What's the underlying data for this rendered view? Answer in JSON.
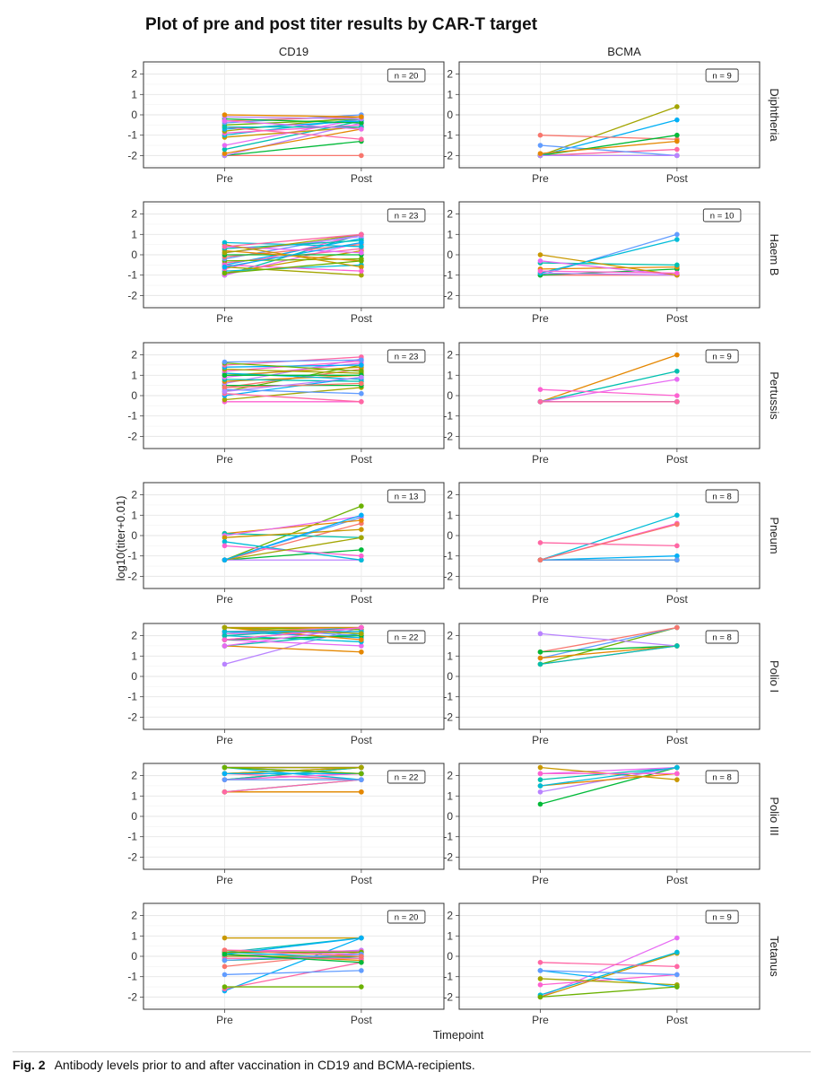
{
  "chart_data": {
    "type": "line",
    "title": "Plot of pre and post titer results by CAR-T target",
    "xlabel": "Timepoint",
    "ylabel": "log10(titer+0.01)",
    "x_categories": [
      "Pre",
      "Post"
    ],
    "ylim": [
      -2.6,
      2.6
    ],
    "y_ticks": [
      -2,
      -1,
      0,
      1,
      2
    ],
    "grid": true,
    "columns": [
      "CD19",
      "BCMA"
    ],
    "rows": [
      "Diphtheria",
      "Haem B",
      "Pertussis",
      "Pneum",
      "Polio I",
      "Polio III",
      "Tetanus"
    ],
    "palette": [
      "#F8766D",
      "#E58700",
      "#C99800",
      "#A3A500",
      "#6BB100",
      "#00BA38",
      "#00C0AF",
      "#00BCD8",
      "#00B0F6",
      "#619CFF",
      "#B983FF",
      "#E76BF3",
      "#FD61D1",
      "#FF67A4"
    ],
    "panels": [
      {
        "target": "CD19",
        "antigen": "Diphtheria",
        "n_label": "n = 20",
        "pairs": [
          [
            -2,
            -2
          ],
          [
            -2,
            -1.3
          ],
          [
            -2,
            -0.4
          ],
          [
            -1.9,
            -0.7
          ],
          [
            -1.7,
            -0.3
          ],
          [
            -1.5,
            -0.2
          ],
          [
            -1.1,
            -0.6
          ],
          [
            -1.0,
            -0.2
          ],
          [
            -0.9,
            -0.5
          ],
          [
            -0.8,
            -0.1
          ],
          [
            -0.7,
            -0.3
          ],
          [
            -0.6,
            -1.2
          ],
          [
            -0.5,
            -0.2
          ],
          [
            -0.4,
            0
          ],
          [
            -0.3,
            -0.1
          ],
          [
            -0.2,
            -0.4
          ],
          [
            -0.1,
            -0.2
          ],
          [
            0,
            -0.1
          ],
          [
            -0.6,
            -0.6
          ],
          [
            -0.3,
            -0.7
          ]
        ]
      },
      {
        "target": "BCMA",
        "antigen": "Diphtheria",
        "n_label": "n = 9",
        "pairs": [
          [
            -2,
            0.4
          ],
          [
            -2,
            -0.25
          ],
          [
            -2,
            -1.7
          ],
          [
            -2,
            -2
          ],
          [
            -1.5,
            -2
          ],
          [
            -1.0,
            -1.2
          ],
          [
            -2,
            -1.0
          ],
          [
            -2,
            -2
          ],
          [
            -1.9,
            -1.3
          ]
        ]
      },
      {
        "target": "CD19",
        "antigen": "Haem B",
        "n_label": "n = 23",
        "pairs": [
          [
            -1,
            1
          ],
          [
            -1,
            0.6
          ],
          [
            -0.9,
            0.2
          ],
          [
            -0.8,
            -0.5
          ],
          [
            -0.7,
            1
          ],
          [
            -0.6,
            -1
          ],
          [
            -0.5,
            0.8
          ],
          [
            -0.4,
            0.3
          ],
          [
            -0.3,
            -0.2
          ],
          [
            -0.2,
            1
          ],
          [
            -0.1,
            0.5
          ],
          [
            0,
            0
          ],
          [
            0.1,
            0.9
          ],
          [
            0.2,
            -0.3
          ],
          [
            0.3,
            0.7
          ],
          [
            0.4,
            0.1
          ],
          [
            0.5,
            -0.6
          ],
          [
            0.6,
            0.4
          ],
          [
            -0.5,
            -0.8
          ],
          [
            0.1,
            1
          ],
          [
            -0.6,
            0.6
          ],
          [
            0.4,
            1
          ],
          [
            -0.9,
            -0.3
          ]
        ]
      },
      {
        "target": "BCMA",
        "antigen": "Haem B",
        "n_label": "n = 10",
        "pairs": [
          [
            -1,
            1
          ],
          [
            -1,
            -1
          ],
          [
            -1,
            -0.7
          ],
          [
            -0.9,
            -1
          ],
          [
            -0.7,
            -0.6
          ],
          [
            -0.4,
            -0.5
          ],
          [
            -0.3,
            -1
          ],
          [
            0,
            -1
          ],
          [
            -0.9,
            0.75
          ],
          [
            -0.8,
            -0.9
          ]
        ]
      },
      {
        "target": "CD19",
        "antigen": "Pertussis",
        "n_label": "n = 23",
        "pairs": [
          [
            -0.3,
            -0.3
          ],
          [
            -0.2,
            0.4
          ],
          [
            0,
            0.9
          ],
          [
            0.1,
            -0.3
          ],
          [
            0.2,
            1.5
          ],
          [
            0.3,
            0.1
          ],
          [
            0.4,
            1.3
          ],
          [
            0.5,
            0.5
          ],
          [
            0.6,
            1.8
          ],
          [
            0.7,
            1.0
          ],
          [
            0.8,
            0.7
          ],
          [
            0.9,
            1.6
          ],
          [
            1.0,
            1.4
          ],
          [
            1.1,
            0.8
          ],
          [
            1.2,
            1.7
          ],
          [
            1.3,
            1.1
          ],
          [
            1.4,
            1.5
          ],
          [
            1.5,
            1.9
          ],
          [
            1.6,
            1.2
          ],
          [
            1.65,
            1.75
          ],
          [
            0.4,
            0.6
          ],
          [
            1.0,
            1.0
          ],
          [
            0.2,
            0.9
          ]
        ]
      },
      {
        "target": "BCMA",
        "antigen": "Pertussis",
        "n_label": "n = 9",
        "pairs": [
          [
            -0.3,
            2
          ],
          [
            -0.3,
            1.2
          ],
          [
            -0.3,
            0.8
          ],
          [
            -0.3,
            -0.3
          ],
          [
            -0.3,
            -0.3
          ],
          [
            0.3,
            0
          ],
          [
            -0.3,
            -0.3
          ],
          [
            -0.3,
            -0.3
          ],
          [
            -0.3,
            -0.3
          ]
        ]
      },
      {
        "target": "CD19",
        "antigen": "Pneum",
        "n_label": "n = 13",
        "pairs": [
          [
            -1.2,
            1.45
          ],
          [
            -1.2,
            0.9
          ],
          [
            -1.2,
            0.6
          ],
          [
            -1.2,
            -0.7
          ],
          [
            -1.2,
            -1.2
          ],
          [
            0.1,
            0.75
          ],
          [
            0.1,
            -0.1
          ],
          [
            0,
            0.95
          ],
          [
            -0.1,
            0.3
          ],
          [
            -0.3,
            -1.2
          ],
          [
            -0.5,
            -1.0
          ],
          [
            -1.2,
            -0.1
          ],
          [
            -1.2,
            1.0
          ]
        ]
      },
      {
        "target": "BCMA",
        "antigen": "Pneum",
        "n_label": "n = 8",
        "pairs": [
          [
            -1.2,
            1.0
          ],
          [
            -1.2,
            0.6
          ],
          [
            -1.2,
            -1.2
          ],
          [
            -1.2,
            -1.0
          ],
          [
            -0.35,
            -0.5
          ],
          [
            -1.2,
            -1.2
          ],
          [
            -1.2,
            -1.2
          ],
          [
            -1.2,
            0.55
          ]
        ]
      },
      {
        "target": "CD19",
        "antigen": "Polio I",
        "n_label": "n = 22",
        "pairs": [
          [
            0.6,
            2.4
          ],
          [
            1.5,
            1.2
          ],
          [
            1.5,
            2.1
          ],
          [
            1.8,
            1.5
          ],
          [
            1.8,
            2.4
          ],
          [
            2.0,
            1.7
          ],
          [
            2.1,
            2.2
          ],
          [
            2.1,
            2.4
          ],
          [
            2.2,
            1.9
          ],
          [
            2.4,
            2.4
          ],
          [
            2.4,
            2.3
          ],
          [
            2.4,
            2.0
          ],
          [
            2.2,
            2.4
          ],
          [
            1.8,
            2.0
          ],
          [
            2.1,
            2.4
          ],
          [
            2.4,
            1.8
          ],
          [
            2.0,
            2.4
          ],
          [
            1.5,
            2.4
          ],
          [
            2.4,
            2.4
          ],
          [
            2.2,
            2.2
          ],
          [
            1.8,
            2.4
          ],
          [
            2.4,
            2.1
          ]
        ]
      },
      {
        "target": "BCMA",
        "antigen": "Polio I",
        "n_label": "n = 8",
        "pairs": [
          [
            0.6,
            1.5
          ],
          [
            0.6,
            2.4
          ],
          [
            0.9,
            2.4
          ],
          [
            1.2,
            2.4
          ],
          [
            1.2,
            1.5
          ],
          [
            2.1,
            1.5
          ],
          [
            0.9,
            1.5
          ],
          [
            0.6,
            1.5
          ]
        ]
      },
      {
        "target": "CD19",
        "antigen": "Polio III",
        "n_label": "n = 22",
        "pairs": [
          [
            1.2,
            1.2
          ],
          [
            1.2,
            1.8
          ],
          [
            1.8,
            2.1
          ],
          [
            1.8,
            2.4
          ],
          [
            2.1,
            2.1
          ],
          [
            2.1,
            1.8
          ],
          [
            2.4,
            2.4
          ],
          [
            2.4,
            2.1
          ],
          [
            1.8,
            1.8
          ],
          [
            2.1,
            2.4
          ],
          [
            2.4,
            2.4
          ],
          [
            1.2,
            1.2
          ],
          [
            1.8,
            2.4
          ],
          [
            2.4,
            2.4
          ],
          [
            2.1,
            2.4
          ],
          [
            2.4,
            1.8
          ],
          [
            1.8,
            2.1
          ],
          [
            2.4,
            2.4
          ],
          [
            2.1,
            2.1
          ],
          [
            1.2,
            1.8
          ],
          [
            2.4,
            2.1
          ],
          [
            1.8,
            1.8
          ]
        ]
      },
      {
        "target": "BCMA",
        "antigen": "Polio III",
        "n_label": "n = 8",
        "pairs": [
          [
            0.6,
            2.4
          ],
          [
            1.2,
            2.4
          ],
          [
            1.5,
            2.1
          ],
          [
            1.8,
            2.4
          ],
          [
            2.1,
            2.4
          ],
          [
            2.4,
            1.8
          ],
          [
            1.5,
            2.4
          ],
          [
            2.1,
            2.1
          ]
        ]
      },
      {
        "target": "CD19",
        "antigen": "Tetanus",
        "n_label": "n = 20",
        "pairs": [
          [
            -1.7,
            0.9
          ],
          [
            -1.6,
            -0.3
          ],
          [
            -1.5,
            -1.5
          ],
          [
            -0.9,
            -0.7
          ],
          [
            -0.5,
            0.2
          ],
          [
            -0.2,
            0
          ],
          [
            0,
            0.3
          ],
          [
            0.1,
            -0.2
          ],
          [
            0.2,
            0.9
          ],
          [
            0.3,
            0.1
          ],
          [
            0.9,
            0.9
          ],
          [
            0.2,
            -0.1
          ],
          [
            0.3,
            0.25
          ],
          [
            0,
            0
          ],
          [
            0.1,
            0.9
          ],
          [
            -0.1,
            -0.1
          ],
          [
            0.2,
            0.2
          ],
          [
            -0.2,
            0.1
          ],
          [
            0.3,
            0
          ],
          [
            0.1,
            -0.3
          ]
        ]
      },
      {
        "target": "BCMA",
        "antigen": "Tetanus",
        "n_label": "n = 9",
        "pairs": [
          [
            -2,
            0.9
          ],
          [
            -2,
            0.15
          ],
          [
            -1.9,
            0.2
          ],
          [
            -1.4,
            -0.9
          ],
          [
            -1.1,
            -1.4
          ],
          [
            -0.7,
            -1.5
          ],
          [
            -0.3,
            -0.5
          ],
          [
            -2,
            -1.5
          ],
          [
            -0.7,
            -0.9
          ]
        ]
      }
    ]
  },
  "caption": {
    "label": "Fig. 2",
    "text": "Antibody levels prior to and after vaccination in CD19 and BCMA-recipients."
  }
}
